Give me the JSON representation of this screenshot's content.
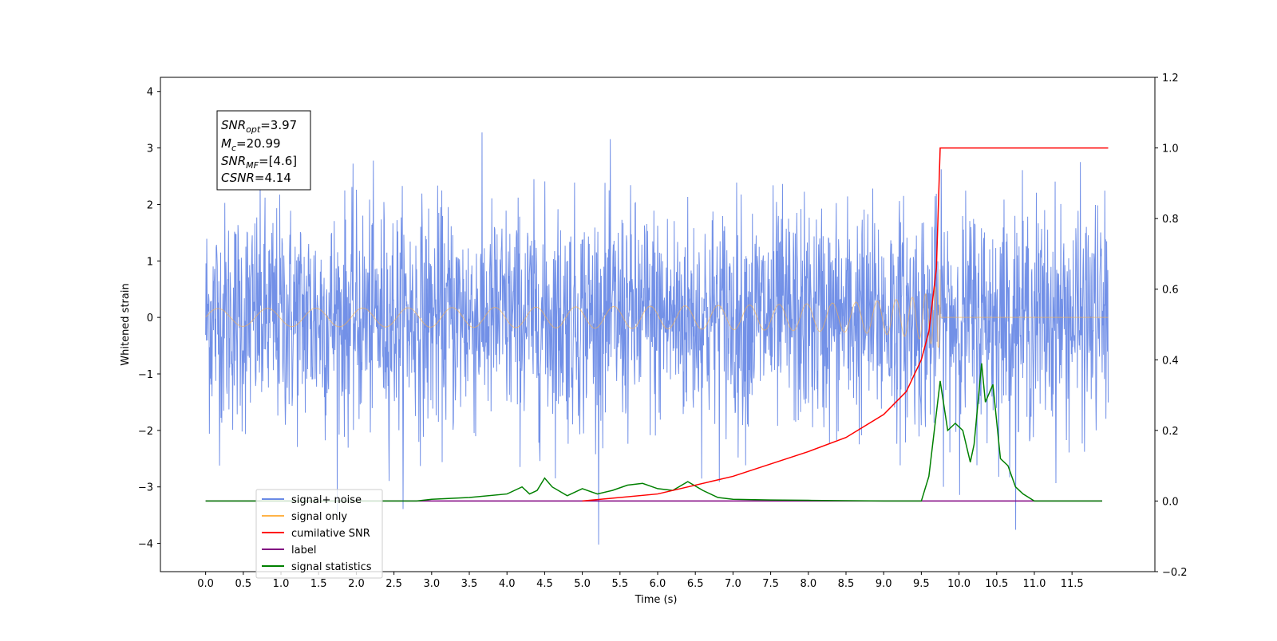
{
  "chart_data": {
    "type": "line",
    "xlabel": "Time (s)",
    "ylabel": "Whitened strain",
    "xlim": [
      -0.6,
      12.6
    ],
    "ylim": [
      -4.5,
      4.25
    ],
    "y2lim": [
      -0.2,
      1.2
    ],
    "x_ticks": [
      "0.0",
      "0.5",
      "1.0",
      "1.5",
      "2.0",
      "2.5",
      "3.0",
      "3.5",
      "4.0",
      "4.5",
      "5.0",
      "5.5",
      "6.0",
      "6.5",
      "7.0",
      "7.5",
      "8.0",
      "8.5",
      "9.0",
      "9.5",
      "10.0",
      "10.5",
      "11.0",
      "11.5"
    ],
    "y_ticks": [
      "4",
      "3",
      "2",
      "1",
      "0",
      "−1",
      "−2",
      "−3",
      "−4"
    ],
    "y2_ticks": [
      "1.2",
      "1.0",
      "0.8",
      "0.6",
      "0.4",
      "0.2",
      "0.0",
      "−0.2"
    ],
    "grid": false,
    "legend_position": "lower-left",
    "annotation": {
      "snr_opt": {
        "symbol": "SNR",
        "sub": "opt",
        "value": "=3.97"
      },
      "mc": {
        "symbol": "M",
        "sub": "c",
        "value": "=20.99"
      },
      "snr_mf": {
        "symbol": "SNR",
        "sub": "MF",
        "value": "=[4.6]"
      },
      "csnr": {
        "symbol": "CSNR",
        "value": "=4.14"
      }
    },
    "series": [
      {
        "name": "signal+ noise",
        "axis": "left",
        "color": "#6a8ae6",
        "description_values": "stationary noise, std ~1.0, x from 0.0 to 11.98 s"
      },
      {
        "name": "signal only",
        "axis": "left",
        "color": "#ffb347",
        "chirp": {
          "start": 0.0,
          "merger": 9.75,
          "amplitude_at_merger": 0.85
        }
      },
      {
        "name": "cumilative SNR",
        "axis": "right",
        "color": "#ff0000",
        "x": [
          5.0,
          6.0,
          7.0,
          8.0,
          8.5,
          9.0,
          9.3,
          9.5,
          9.6,
          9.7,
          9.75,
          10.0,
          11.0,
          11.98
        ],
        "y": [
          0.0,
          0.02,
          0.07,
          0.14,
          0.18,
          0.245,
          0.31,
          0.4,
          0.48,
          0.66,
          1.0,
          1.0,
          1.0,
          1.0
        ]
      },
      {
        "name": "label",
        "axis": "right",
        "color": "#800080",
        "x": [
          0.0,
          11.9
        ],
        "y": [
          0.0,
          0.0
        ]
      },
      {
        "name": "signal statistics",
        "axis": "right",
        "color": "#008000",
        "x": [
          0.0,
          2.8,
          3.0,
          3.5,
          4.0,
          4.2,
          4.3,
          4.4,
          4.5,
          4.6,
          4.8,
          5.0,
          5.2,
          5.4,
          5.6,
          5.8,
          6.0,
          6.2,
          6.4,
          6.6,
          6.8,
          7.0,
          7.5,
          8.0,
          8.5,
          9.0,
          9.5,
          9.6,
          9.75,
          9.85,
          9.95,
          10.05,
          10.15,
          10.2,
          10.3,
          10.35,
          10.45,
          10.55,
          10.65,
          10.75,
          10.85,
          11.0,
          11.9
        ],
        "y": [
          0.0,
          0.0,
          0.005,
          0.01,
          0.02,
          0.04,
          0.02,
          0.03,
          0.065,
          0.04,
          0.015,
          0.035,
          0.02,
          0.03,
          0.045,
          0.05,
          0.035,
          0.03,
          0.055,
          0.03,
          0.01,
          0.005,
          0.003,
          0.002,
          0.001,
          0.0,
          0.0,
          0.07,
          0.34,
          0.2,
          0.22,
          0.2,
          0.11,
          0.16,
          0.39,
          0.28,
          0.33,
          0.12,
          0.1,
          0.04,
          0.02,
          0.0,
          0.0
        ]
      }
    ]
  }
}
